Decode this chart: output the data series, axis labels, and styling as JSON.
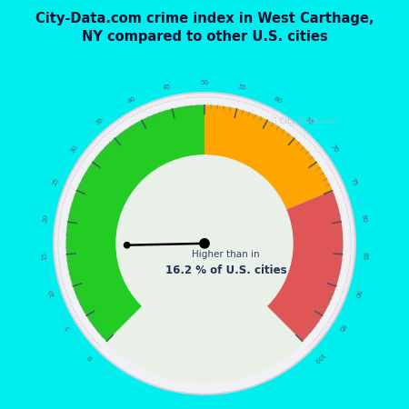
{
  "title": "City-Data.com crime index in West Carthage,\nNY compared to other U.S. cities",
  "title_color": "#111133",
  "bg_color": "#00EEEE",
  "gauge_face_color": "#e8f0e8",
  "gauge_outer_ring_color": "#d8d8e0",
  "needle_value": 16.2,
  "value_min": 0,
  "value_max": 100,
  "green_color": "#22CC22",
  "orange_color": "#FFA500",
  "red_color": "#E05555",
  "label_text": "Higher than in",
  "label_value": "16.2 % of U.S. cities",
  "tick_label_color": "#556677",
  "watermark": "ⓘ City-Data.com"
}
